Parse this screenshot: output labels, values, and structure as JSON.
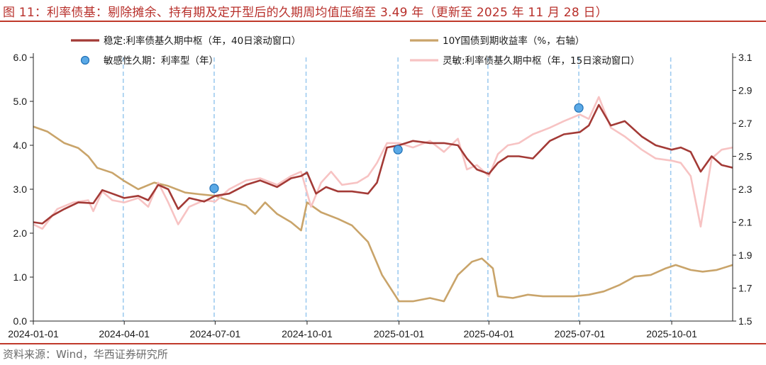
{
  "title": "图 11：利率债基：剔除摊余、持有期及定开型后的久期周均值压缩至 3.49 年（更新至 2025 年 11 月 28 日）",
  "source": "资料来源：Wind，华西证券研究所",
  "colors": {
    "stable": "#a33a36",
    "yield10y": "#c9a46a",
    "agile": "#f7c3c3",
    "marker": "#5aa9e6",
    "marker_edge": "#1f6fb5",
    "vline": "#9ecbef",
    "accent": "#c0392b"
  },
  "chart_data": {
    "type": "line",
    "xlabel": "",
    "ylabel": "",
    "x_ticks": [
      "2024-01-01",
      "2024-04-01",
      "2024-07-01",
      "2024-10-01",
      "2025-01-01",
      "2025-04-01",
      "2025-07-01",
      "2025-10-01"
    ],
    "x_range": [
      "2024-01-01",
      "2025-12-01"
    ],
    "y_left": {
      "ylim": [
        0,
        6
      ],
      "ticks": [
        "0.0",
        "1.0",
        "2.0",
        "3.0",
        "4.0",
        "5.0",
        "6.0"
      ]
    },
    "y_right": {
      "ylim": [
        1.5,
        3.1
      ],
      "ticks": [
        "1.5",
        "1.7",
        "1.9",
        "2.1",
        "2.3",
        "2.5",
        "2.7",
        "2.9",
        "3.1"
      ]
    },
    "legend_placement": "top",
    "reference_lines_x": [
      "2024-03-31",
      "2024-06-30",
      "2024-09-30",
      "2024-12-31",
      "2025-03-31",
      "2025-06-30",
      "2025-09-30"
    ],
    "series": [
      {
        "name": "稳定:利率债基久期中枢（年，40日滚动窗口）",
        "key": "stable",
        "axis": "left",
        "points": [
          [
            "2024-01-01",
            2.25
          ],
          [
            "2024-01-10",
            2.22
          ],
          [
            "2024-01-20",
            2.4
          ],
          [
            "2024-02-01",
            2.55
          ],
          [
            "2024-02-15",
            2.7
          ],
          [
            "2024-03-01",
            2.68
          ],
          [
            "2024-03-10",
            2.98
          ],
          [
            "2024-03-20",
            2.9
          ],
          [
            "2024-04-01",
            2.8
          ],
          [
            "2024-04-15",
            2.85
          ],
          [
            "2024-04-25",
            2.75
          ],
          [
            "2024-05-05",
            3.1
          ],
          [
            "2024-05-15",
            3.0
          ],
          [
            "2024-05-25",
            2.55
          ],
          [
            "2024-06-05",
            2.8
          ],
          [
            "2024-06-20",
            2.72
          ],
          [
            "2024-07-01",
            2.85
          ],
          [
            "2024-07-15",
            2.9
          ],
          [
            "2024-08-01",
            3.1
          ],
          [
            "2024-08-15",
            3.2
          ],
          [
            "2024-09-01",
            3.05
          ],
          [
            "2024-09-15",
            3.25
          ],
          [
            "2024-09-25",
            3.3
          ],
          [
            "2024-10-01",
            3.38
          ],
          [
            "2024-10-10",
            2.9
          ],
          [
            "2024-10-20",
            3.05
          ],
          [
            "2024-11-01",
            2.95
          ],
          [
            "2024-11-15",
            2.95
          ],
          [
            "2024-12-01",
            2.9
          ],
          [
            "2024-12-10",
            3.15
          ],
          [
            "2024-12-20",
            3.95
          ],
          [
            "2025-01-01",
            4.0
          ],
          [
            "2025-01-15",
            4.1
          ],
          [
            "2025-02-01",
            4.05
          ],
          [
            "2025-02-15",
            4.05
          ],
          [
            "2025-03-01",
            4.0
          ],
          [
            "2025-03-10",
            3.7
          ],
          [
            "2025-03-20",
            3.45
          ],
          [
            "2025-04-01",
            3.35
          ],
          [
            "2025-04-10",
            3.6
          ],
          [
            "2025-04-20",
            3.75
          ],
          [
            "2025-05-01",
            3.75
          ],
          [
            "2025-05-15",
            3.7
          ],
          [
            "2025-06-01",
            4.1
          ],
          [
            "2025-06-15",
            4.25
          ],
          [
            "2025-07-01",
            4.3
          ],
          [
            "2025-07-10",
            4.45
          ],
          [
            "2025-07-20",
            4.92
          ],
          [
            "2025-08-01",
            4.45
          ],
          [
            "2025-08-15",
            4.55
          ],
          [
            "2025-09-01",
            4.2
          ],
          [
            "2025-09-15",
            4.0
          ],
          [
            "2025-10-01",
            3.9
          ],
          [
            "2025-10-10",
            3.95
          ],
          [
            "2025-10-20",
            3.85
          ],
          [
            "2025-10-30",
            3.4
          ],
          [
            "2025-11-10",
            3.75
          ],
          [
            "2025-11-20",
            3.55
          ],
          [
            "2025-12-01",
            3.49
          ]
        ]
      },
      {
        "name": "10Y国债到期收益率（%，右轴）",
        "key": "yield10y",
        "axis": "right",
        "points": [
          [
            "2024-01-01",
            2.68
          ],
          [
            "2024-01-15",
            2.65
          ],
          [
            "2024-02-01",
            2.58
          ],
          [
            "2024-02-15",
            2.55
          ],
          [
            "2024-02-25",
            2.5
          ],
          [
            "2024-03-05",
            2.43
          ],
          [
            "2024-03-20",
            2.4
          ],
          [
            "2024-04-01",
            2.35
          ],
          [
            "2024-04-15",
            2.3
          ],
          [
            "2024-05-01",
            2.34
          ],
          [
            "2024-05-15",
            2.32
          ],
          [
            "2024-06-01",
            2.28
          ],
          [
            "2024-06-15",
            2.27
          ],
          [
            "2024-07-01",
            2.26
          ],
          [
            "2024-07-15",
            2.23
          ],
          [
            "2024-08-01",
            2.2
          ],
          [
            "2024-08-10",
            2.15
          ],
          [
            "2024-08-20",
            2.22
          ],
          [
            "2024-09-01",
            2.15
          ],
          [
            "2024-09-15",
            2.1
          ],
          [
            "2024-09-25",
            2.05
          ],
          [
            "2024-10-01",
            2.22
          ],
          [
            "2024-10-15",
            2.16
          ],
          [
            "2024-11-01",
            2.12
          ],
          [
            "2024-11-15",
            2.08
          ],
          [
            "2024-12-01",
            1.98
          ],
          [
            "2024-12-15",
            1.78
          ],
          [
            "2025-01-01",
            1.62
          ],
          [
            "2025-01-15",
            1.62
          ],
          [
            "2025-02-01",
            1.64
          ],
          [
            "2025-02-15",
            1.62
          ],
          [
            "2025-03-01",
            1.78
          ],
          [
            "2025-03-15",
            1.86
          ],
          [
            "2025-03-25",
            1.88
          ],
          [
            "2025-04-05",
            1.82
          ],
          [
            "2025-04-10",
            1.65
          ],
          [
            "2025-04-25",
            1.64
          ],
          [
            "2025-05-10",
            1.66
          ],
          [
            "2025-05-25",
            1.65
          ],
          [
            "2025-06-10",
            1.65
          ],
          [
            "2025-06-25",
            1.65
          ],
          [
            "2025-07-10",
            1.66
          ],
          [
            "2025-07-25",
            1.68
          ],
          [
            "2025-08-10",
            1.72
          ],
          [
            "2025-08-25",
            1.77
          ],
          [
            "2025-09-10",
            1.78
          ],
          [
            "2025-09-25",
            1.82
          ],
          [
            "2025-10-05",
            1.84
          ],
          [
            "2025-10-20",
            1.81
          ],
          [
            "2025-11-01",
            1.8
          ],
          [
            "2025-11-15",
            1.81
          ],
          [
            "2025-12-01",
            1.84
          ]
        ]
      },
      {
        "name": "灵敏:利率债基久期中枢（年，15日滚动窗口）",
        "key": "agile",
        "axis": "left",
        "points": [
          [
            "2024-01-01",
            2.2
          ],
          [
            "2024-01-10",
            2.1
          ],
          [
            "2024-01-25",
            2.55
          ],
          [
            "2024-02-10",
            2.7
          ],
          [
            "2024-02-25",
            2.75
          ],
          [
            "2024-03-01",
            2.5
          ],
          [
            "2024-03-10",
            2.95
          ],
          [
            "2024-03-20",
            2.75
          ],
          [
            "2024-04-01",
            2.7
          ],
          [
            "2024-04-15",
            2.8
          ],
          [
            "2024-04-25",
            2.6
          ],
          [
            "2024-05-05",
            3.15
          ],
          [
            "2024-05-15",
            2.7
          ],
          [
            "2024-05-25",
            2.2
          ],
          [
            "2024-06-05",
            2.6
          ],
          [
            "2024-06-20",
            2.75
          ],
          [
            "2024-07-01",
            2.72
          ],
          [
            "2024-07-15",
            3.0
          ],
          [
            "2024-08-01",
            3.2
          ],
          [
            "2024-08-15",
            3.25
          ],
          [
            "2024-09-01",
            3.1
          ],
          [
            "2024-09-15",
            3.3
          ],
          [
            "2024-09-25",
            3.4
          ],
          [
            "2024-10-05",
            2.6
          ],
          [
            "2024-10-15",
            3.15
          ],
          [
            "2024-10-25",
            3.4
          ],
          [
            "2024-11-05",
            3.1
          ],
          [
            "2024-11-20",
            3.15
          ],
          [
            "2024-12-01",
            3.3
          ],
          [
            "2024-12-10",
            3.6
          ],
          [
            "2024-12-20",
            4.05
          ],
          [
            "2025-01-01",
            4.05
          ],
          [
            "2025-01-15",
            3.95
          ],
          [
            "2025-02-01",
            4.1
          ],
          [
            "2025-02-15",
            3.85
          ],
          [
            "2025-03-01",
            4.15
          ],
          [
            "2025-03-10",
            3.45
          ],
          [
            "2025-03-20",
            3.55
          ],
          [
            "2025-04-01",
            3.3
          ],
          [
            "2025-04-10",
            3.8
          ],
          [
            "2025-04-20",
            4.0
          ],
          [
            "2025-05-01",
            4.05
          ],
          [
            "2025-05-15",
            4.25
          ],
          [
            "2025-06-01",
            4.4
          ],
          [
            "2025-06-15",
            4.55
          ],
          [
            "2025-07-01",
            4.7
          ],
          [
            "2025-07-10",
            4.6
          ],
          [
            "2025-07-20",
            5.1
          ],
          [
            "2025-08-01",
            4.4
          ],
          [
            "2025-08-15",
            4.2
          ],
          [
            "2025-09-01",
            3.9
          ],
          [
            "2025-09-15",
            3.7
          ],
          [
            "2025-10-01",
            3.65
          ],
          [
            "2025-10-10",
            3.6
          ],
          [
            "2025-10-20",
            3.3
          ],
          [
            "2025-10-30",
            2.15
          ],
          [
            "2025-11-10",
            3.7
          ],
          [
            "2025-11-20",
            3.9
          ],
          [
            "2025-12-01",
            3.95
          ]
        ]
      },
      {
        "name": "敏感性久期：利率型（年）",
        "key": "marker",
        "axis": "left",
        "style": "marker",
        "points": [
          [
            "2024-06-30",
            3.02
          ],
          [
            "2024-12-31",
            3.9
          ],
          [
            "2025-06-30",
            4.85
          ]
        ]
      }
    ]
  }
}
